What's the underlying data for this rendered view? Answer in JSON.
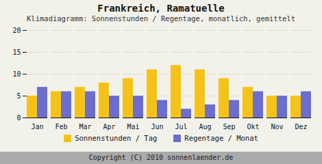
{
  "chart_data": {
    "type": "bar",
    "title": "Frankreich, Ramatuelle",
    "subtitle": "Klimadiagramm: Sonnenstunden / Regentage, monatlich, gemittelt",
    "footer": "Copyright (C) 2010 sonnenlaender.de",
    "categories": [
      "Jan",
      "Feb",
      "Mar",
      "Apr",
      "Mai",
      "Jun",
      "Jul",
      "Aug",
      "Sep",
      "Okt",
      "Nov",
      "Dez"
    ],
    "series": [
      {
        "name": "Sonnenstunden / Tag",
        "color": "#F5C218",
        "values": [
          5,
          6,
          7,
          8,
          9,
          11,
          12,
          11,
          9,
          7,
          5,
          5
        ]
      },
      {
        "name": "Regentage / Monat",
        "color": "#6B6ECC",
        "values": [
          7,
          6,
          6,
          5,
          5,
          4,
          2,
          3,
          4,
          6,
          5,
          6
        ]
      }
    ],
    "ylim": [
      0,
      20
    ],
    "yticks": [
      0,
      5,
      10,
      15,
      20
    ],
    "grid": true,
    "legend": "bottom"
  }
}
